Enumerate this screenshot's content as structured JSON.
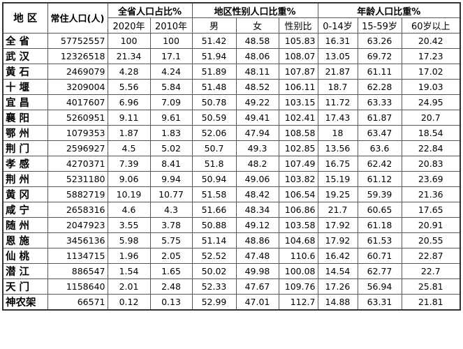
{
  "headers": {
    "region": "地 区",
    "population": "常住人口(人)",
    "share_group": "全省人口占比%",
    "sex_group": "地区性别人口比重%",
    "age_group": "年龄人口比重%",
    "share_2020": "2020年",
    "share_2010": "2010年",
    "male": "男",
    "female": "女",
    "sex_ratio": "性别比",
    "age_0_14": "0-14岁",
    "age_15_59": "15-59岁",
    "age_60_plus": "60岁以上"
  },
  "rows": [
    {
      "region": "全 省",
      "population": "57752557",
      "share_2020": "100",
      "share_2010": "100",
      "male": "51.42",
      "female": "48.58",
      "sex_ratio": "105.83",
      "age_0_14": "16.31",
      "age_15_59": "63.26",
      "age_60_plus": "20.42"
    },
    {
      "region": "武 汉",
      "population": "12326518",
      "share_2020": "21.34",
      "share_2010": "17.1",
      "male": "51.94",
      "female": "48.06",
      "sex_ratio": "108.07",
      "age_0_14": "13.05",
      "age_15_59": "69.72",
      "age_60_plus": "17.23"
    },
    {
      "region": "黄 石",
      "population": "2469079",
      "share_2020": "4.28",
      "share_2010": "4.24",
      "male": "51.89",
      "female": "48.11",
      "sex_ratio": "107.87",
      "age_0_14": "21.87",
      "age_15_59": "61.11",
      "age_60_plus": "17.02"
    },
    {
      "region": "十 堰",
      "population": "3209004",
      "share_2020": "5.56",
      "share_2010": "5.84",
      "male": "51.48",
      "female": "48.52",
      "sex_ratio": "106.11",
      "age_0_14": "18.7",
      "age_15_59": "62.28",
      "age_60_plus": "19.03"
    },
    {
      "region": "宜 昌",
      "population": "4017607",
      "share_2020": "6.96",
      "share_2010": "7.09",
      "male": "50.78",
      "female": "49.22",
      "sex_ratio": "103.15",
      "age_0_14": "11.72",
      "age_15_59": "63.33",
      "age_60_plus": "24.95"
    },
    {
      "region": "襄 阳",
      "population": "5260951",
      "share_2020": "9.11",
      "share_2010": "9.61",
      "male": "50.59",
      "female": "49.41",
      "sex_ratio": "102.41",
      "age_0_14": "17.43",
      "age_15_59": "61.87",
      "age_60_plus": "20.7"
    },
    {
      "region": "鄂 州",
      "population": "1079353",
      "share_2020": "1.87",
      "share_2010": "1.83",
      "male": "52.06",
      "female": "47.94",
      "sex_ratio": "108.58",
      "age_0_14": "18",
      "age_15_59": "63.47",
      "age_60_plus": "18.54"
    },
    {
      "region": "荆 门",
      "population": "2596927",
      "share_2020": "4.5",
      "share_2010": "5.02",
      "male": "50.7",
      "female": "49.3",
      "sex_ratio": "102.85",
      "age_0_14": "13.56",
      "age_15_59": "63.6",
      "age_60_plus": "22.84"
    },
    {
      "region": "孝 感",
      "population": "4270371",
      "share_2020": "7.39",
      "share_2010": "8.41",
      "male": "51.8",
      "female": "48.2",
      "sex_ratio": "107.49",
      "age_0_14": "16.75",
      "age_15_59": "62.42",
      "age_60_plus": "20.83"
    },
    {
      "region": "荆 州",
      "population": "5231180",
      "share_2020": "9.06",
      "share_2010": "9.94",
      "male": "50.94",
      "female": "49.06",
      "sex_ratio": "103.82",
      "age_0_14": "15.19",
      "age_15_59": "61.12",
      "age_60_plus": "23.69"
    },
    {
      "region": "黄 冈",
      "population": "5882719",
      "share_2020": "10.19",
      "share_2010": "10.77",
      "male": "51.58",
      "female": "48.42",
      "sex_ratio": "106.54",
      "age_0_14": "19.25",
      "age_15_59": "59.39",
      "age_60_plus": "21.36"
    },
    {
      "region": "咸 宁",
      "population": "2658316",
      "share_2020": "4.6",
      "share_2010": "4.3",
      "male": "51.66",
      "female": "48.34",
      "sex_ratio": "106.86",
      "age_0_14": "21.7",
      "age_15_59": "60.65",
      "age_60_plus": "17.65"
    },
    {
      "region": "随 州",
      "population": "2047923",
      "share_2020": "3.55",
      "share_2010": "3.78",
      "male": "50.88",
      "female": "49.12",
      "sex_ratio": "103.58",
      "age_0_14": "17.92",
      "age_15_59": "61.18",
      "age_60_plus": "20.91"
    },
    {
      "region": "恩 施",
      "population": "3456136",
      "share_2020": "5.98",
      "share_2010": "5.75",
      "male": "51.14",
      "female": "48.86",
      "sex_ratio": "104.68",
      "age_0_14": "17.92",
      "age_15_59": "61.53",
      "age_60_plus": "20.55"
    },
    {
      "region": "仙 桃",
      "population": "1134715",
      "share_2020": "1.96",
      "share_2010": "2.05",
      "male": "52.52",
      "female": "47.48",
      "sex_ratio": "110.6",
      "age_0_14": "16.42",
      "age_15_59": "60.71",
      "age_60_plus": "22.87"
    },
    {
      "region": "潜 江",
      "population": "886547",
      "share_2020": "1.54",
      "share_2010": "1.65",
      "male": "50.02",
      "female": "49.98",
      "sex_ratio": "100.08",
      "age_0_14": "14.54",
      "age_15_59": "62.77",
      "age_60_plus": "22.7"
    },
    {
      "region": "天 门",
      "population": "1158640",
      "share_2020": "2.01",
      "share_2010": "2.48",
      "male": "52.33",
      "female": "47.67",
      "sex_ratio": "109.76",
      "age_0_14": "17.26",
      "age_15_59": "56.94",
      "age_60_plus": "25.81"
    },
    {
      "region": "神农架",
      "population": "66571",
      "share_2020": "0.12",
      "share_2010": "0.13",
      "male": "52.99",
      "female": "47.01",
      "sex_ratio": "112.7",
      "age_0_14": "14.88",
      "age_15_59": "63.31",
      "age_60_plus": "21.81"
    }
  ]
}
